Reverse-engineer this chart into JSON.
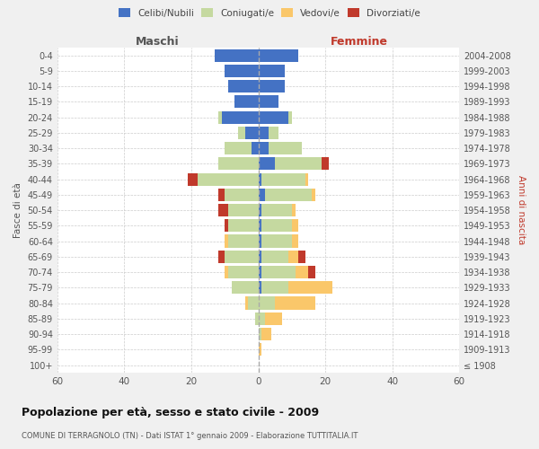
{
  "age_groups": [
    "0-4",
    "5-9",
    "10-14",
    "15-19",
    "20-24",
    "25-29",
    "30-34",
    "35-39",
    "40-44",
    "45-49",
    "50-54",
    "55-59",
    "60-64",
    "65-69",
    "70-74",
    "75-79",
    "80-84",
    "85-89",
    "90-94",
    "95-99",
    "100+"
  ],
  "birth_years": [
    "2004-2008",
    "1999-2003",
    "1994-1998",
    "1989-1993",
    "1984-1988",
    "1979-1983",
    "1974-1978",
    "1969-1973",
    "1964-1968",
    "1959-1963",
    "1954-1958",
    "1949-1953",
    "1944-1948",
    "1939-1943",
    "1934-1938",
    "1929-1933",
    "1924-1928",
    "1919-1923",
    "1914-1918",
    "1909-1913",
    "≤ 1908"
  ],
  "male": {
    "celibi": [
      13,
      10,
      9,
      7,
      11,
      4,
      2,
      0,
      0,
      0,
      0,
      0,
      0,
      0,
      0,
      0,
      0,
      0,
      0,
      0,
      0
    ],
    "coniugati": [
      0,
      0,
      0,
      0,
      1,
      2,
      8,
      12,
      18,
      10,
      9,
      9,
      9,
      10,
      9,
      8,
      3,
      1,
      0,
      0,
      0
    ],
    "vedovi": [
      0,
      0,
      0,
      0,
      0,
      0,
      0,
      0,
      0,
      0,
      0,
      0,
      1,
      0,
      1,
      0,
      1,
      0,
      0,
      0,
      0
    ],
    "divorziati": [
      0,
      0,
      0,
      0,
      0,
      0,
      0,
      0,
      3,
      2,
      3,
      1,
      0,
      2,
      0,
      0,
      0,
      0,
      0,
      0,
      0
    ]
  },
  "female": {
    "nubili": [
      12,
      8,
      8,
      6,
      9,
      3,
      3,
      5,
      1,
      2,
      1,
      1,
      1,
      1,
      1,
      1,
      0,
      0,
      0,
      0,
      0
    ],
    "coniugate": [
      0,
      0,
      0,
      0,
      1,
      3,
      10,
      14,
      13,
      14,
      9,
      9,
      9,
      8,
      10,
      8,
      5,
      2,
      1,
      0,
      0
    ],
    "vedove": [
      0,
      0,
      0,
      0,
      0,
      0,
      0,
      0,
      1,
      1,
      1,
      2,
      2,
      3,
      4,
      13,
      12,
      5,
      3,
      1,
      0
    ],
    "divorziate": [
      0,
      0,
      0,
      0,
      0,
      0,
      0,
      2,
      0,
      0,
      0,
      0,
      0,
      2,
      2,
      0,
      0,
      0,
      0,
      0,
      0
    ]
  },
  "colors": {
    "celibi": "#4472c4",
    "coniugati": "#c5d9a0",
    "vedovi": "#fac76a",
    "divorziati": "#c0392b"
  },
  "xlim": 60,
  "title": "Popolazione per età, sesso e stato civile - 2009",
  "subtitle": "COMUNE DI TERRAGNOLO (TN) - Dati ISTAT 1° gennaio 2009 - Elaborazione TUTTITALIA.IT",
  "ylabel_left": "Fasce di età",
  "ylabel_right": "Anni di nascita",
  "xlabel_left": "Maschi",
  "xlabel_right": "Femmine",
  "bg_color": "#f0f0f0",
  "plot_bg": "#ffffff",
  "grid_color": "#cccccc"
}
